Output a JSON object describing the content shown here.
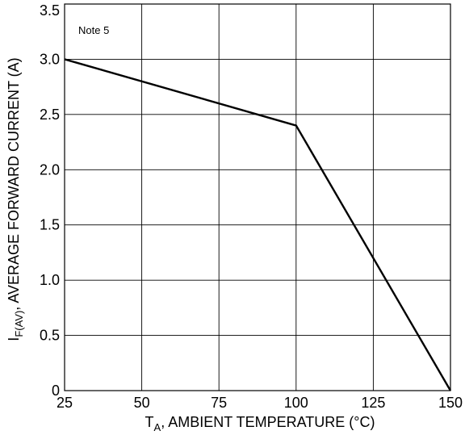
{
  "chart_data": {
    "type": "line",
    "xlabel": {
      "main": "T",
      "sub": "A",
      "rest": ", AMBIENT TEMPERATURE (°C)"
    },
    "ylabel": {
      "main": "I",
      "sub": "F(AV)",
      "rest": ", AVERAGE FORWARD CURRENT (A)"
    },
    "annotation": "Note 5",
    "xlim": [
      25,
      150
    ],
    "ylim": [
      0,
      3.5
    ],
    "x_ticks": [
      25,
      50,
      75,
      100,
      125,
      150
    ],
    "y_ticks": [
      0,
      0.5,
      1.0,
      1.5,
      2.0,
      2.5,
      3.0,
      3.5
    ],
    "x_tick_labels": [
      "25",
      "50",
      "75",
      "100",
      "125",
      "150"
    ],
    "y_tick_labels": [
      "0",
      "0.5",
      "1.0",
      "1.5",
      "2.0",
      "2.5",
      "3.0",
      "3.5"
    ],
    "grid": true,
    "series": [
      {
        "x": [
          25,
          100,
          150
        ],
        "y": [
          3.0,
          2.4,
          0
        ],
        "color": "#000000"
      }
    ]
  }
}
